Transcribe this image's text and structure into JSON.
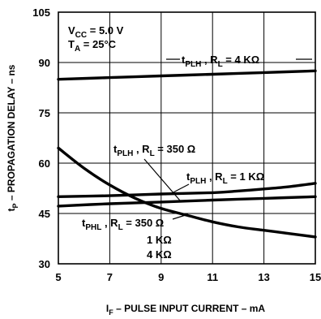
{
  "chart_data": {
    "type": "line",
    "xlim": [
      5,
      15
    ],
    "ylim": [
      30,
      105
    ],
    "x_ticks": [
      "5",
      "7",
      "9",
      "11",
      "13",
      "15"
    ],
    "y_ticks": [
      "30",
      "45",
      "60",
      "75",
      "90",
      "105"
    ],
    "grid": true,
    "xlabel": {
      "main": "I",
      "sub": "F",
      "rest": " – PULSE INPUT CURRENT – mA"
    },
    "ylabel": {
      "main": "t",
      "sub": "P",
      "rest": " – PROPAGATION DELAY – ns"
    },
    "conditions": {
      "vcc": {
        "main": "V",
        "sub": "CC",
        "rest": " = 5.0 V"
      },
      "ta": {
        "main": "T",
        "sub": "A",
        "rest": " = 25°C"
      }
    },
    "series": [
      {
        "label": {
          "t": "t",
          "ts": "PLH",
          "mid": " , R",
          "rs": "L",
          "rest": " = 4 KΩ"
        },
        "points": [
          [
            5,
            85
          ],
          [
            7,
            85.5
          ],
          [
            9,
            86
          ],
          [
            11,
            86.5
          ],
          [
            13,
            87
          ],
          [
            15,
            87.5
          ]
        ]
      },
      {
        "label": {
          "t": "t",
          "ts": "PLH",
          "mid": " , R",
          "rs": "L",
          "rest": " = 350 Ω"
        },
        "points": [
          [
            5,
            47.2
          ],
          [
            7,
            47.9
          ],
          [
            9,
            48.4
          ],
          [
            11,
            49.0
          ],
          [
            13,
            49.5
          ],
          [
            15,
            50.0
          ]
        ]
      },
      {
        "label": {
          "t": "t",
          "ts": "PLH",
          "mid": " , R",
          "rs": "L",
          "rest": " = 1 KΩ"
        },
        "points": [
          [
            5,
            50.0
          ],
          [
            7,
            50.3
          ],
          [
            9,
            50.8
          ],
          [
            11,
            51.2
          ],
          [
            12,
            51.7
          ],
          [
            13,
            52.3
          ],
          [
            14,
            53.0
          ],
          [
            15,
            54.0
          ]
        ]
      },
      {
        "label": {
          "t": "t",
          "ts": "PHL",
          "mid": " , R",
          "rs": "L",
          "rest": " = 350 Ω"
        },
        "extra_labels": [
          "1 KΩ",
          "4 KΩ"
        ],
        "points": [
          [
            5,
            64.5
          ],
          [
            6,
            58.5
          ],
          [
            7,
            53.5
          ],
          [
            8,
            49.5
          ],
          [
            9,
            46.5
          ],
          [
            10,
            44.5
          ],
          [
            11,
            42.5
          ],
          [
            12,
            41
          ],
          [
            13,
            40
          ],
          [
            14,
            39
          ],
          [
            15,
            38
          ]
        ]
      }
    ]
  }
}
